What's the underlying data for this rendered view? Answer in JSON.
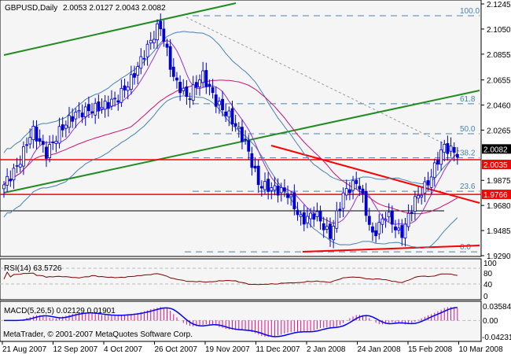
{
  "header": {
    "symbol": "GBPUSD,Daily",
    "ohlc": "2.0053 2.0127 2.0043 2.0082"
  },
  "rsi": {
    "label": "RSI(14) 63.5726",
    "levels": [
      100,
      80,
      40,
      0
    ],
    "ticks": [
      "100",
      "80",
      "40",
      "0"
    ]
  },
  "macd": {
    "label": "MACD(5,26,5) 0.02129 0.01901",
    "ticks": [
      "0.03584",
      "0.00",
      "-0.04231"
    ],
    "range": [
      -0.04231,
      0.03584
    ]
  },
  "copyright": "MetaTrader, © 2001-2007 MetaQuotes Software Corp.",
  "colors": {
    "bg": "#f5f5f5",
    "candle": "#0000cc",
    "bands": "#4682b4",
    "ma_fast": "#9932cc",
    "ma_slow": "#cc1177",
    "trend_green": "#228b22",
    "level_red": "#ff0000",
    "rsi": "#800000",
    "macd_hist": "#dd1188",
    "macd_signal": "#0000ff"
  },
  "chart_data": {
    "type": "candlestick",
    "title": "GBPUSD,Daily",
    "ylim": [
      1.929,
      2.1245
    ],
    "price_ticks": [
      "2.1245",
      "2.1050",
      "2.0855",
      "2.0655",
      "2.0460",
      "2.0265",
      "1.9875",
      "1.9680",
      "1.9485",
      "1.9290"
    ],
    "date_ticks": [
      "21 Aug 2007",
      "12 Sep 2007",
      "4 Oct 2007",
      "26 Oct 2007",
      "19 Nov 2007",
      "11 Dec 2007",
      "2 Jan 2008",
      "24 Jan 2008",
      "15 Feb 2008",
      "10 Mar 2008"
    ],
    "close_keypoints": [
      1.984,
      1.9993,
      2.027,
      2.0084,
      2.027,
      2.039,
      2.042,
      2.045,
      2.051,
      2.066,
      2.088,
      2.109,
      2.066,
      2.051,
      2.07,
      2.048,
      2.036,
      2.018,
      1.984,
      1.981,
      1.978,
      1.956,
      1.962,
      1.944,
      1.978,
      1.987,
      1.944,
      1.962,
      1.944,
      1.972,
      1.987,
      2.014,
      2.0082
    ],
    "current_price": "2.0082",
    "horizontal_levels": [
      {
        "label": "2.0035",
        "value": 2.0035
      },
      {
        "label": "1.9766",
        "value": 1.9766
      }
    ],
    "fibonacci": [
      {
        "label": "100.0",
        "value": 2.1153
      },
      {
        "label": "61.8",
        "value": 2.047
      },
      {
        "label": "50.0",
        "value": 2.0237
      },
      {
        "label": "38.2",
        "value": 2.005
      },
      {
        "label": "23.6",
        "value": 1.979
      },
      {
        "label": "0.0",
        "value": 1.932
      }
    ],
    "support_level": 1.9638
  }
}
